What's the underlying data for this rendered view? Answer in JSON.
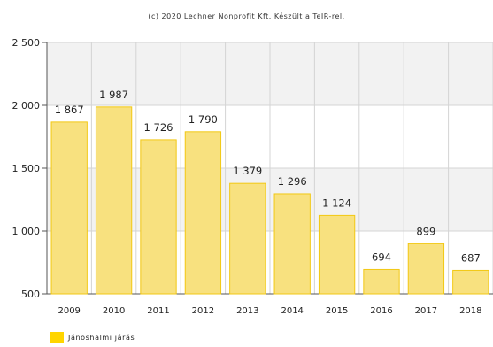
{
  "credit": "(c) 2020 Lechner Nonprofit Kft. Készült a TeIR-rel.",
  "legend": {
    "label": "Jánoshalmi járás"
  },
  "colors": {
    "bar_fill": "#f8e17f",
    "bar_stroke": "#f2c814",
    "legend": "#ffd500",
    "band": "#f2f2f2",
    "grid": "#d4d4d4"
  },
  "chart_data": {
    "type": "bar",
    "categories": [
      "2009",
      "2010",
      "2011",
      "2012",
      "2013",
      "2014",
      "2015",
      "2016",
      "2017",
      "2018"
    ],
    "series": [
      {
        "name": "Jánoshalmi járás",
        "values": [
          1867,
          1987,
          1726,
          1790,
          1379,
          1296,
          1124,
          694,
          899,
          687
        ]
      }
    ],
    "value_labels": [
      "1 867",
      "1 987",
      "1 726",
      "1 790",
      "1 379",
      "1 296",
      "1 124",
      "694",
      "899",
      "687"
    ],
    "y_ticks": [
      500,
      1000,
      1500,
      2000,
      2500
    ],
    "y_tick_labels": [
      "500",
      "1 000",
      "1 500",
      "2 000",
      "2 500"
    ],
    "ylim": [
      500,
      2500
    ],
    "grid": true,
    "legend_position": "bottom-left"
  }
}
